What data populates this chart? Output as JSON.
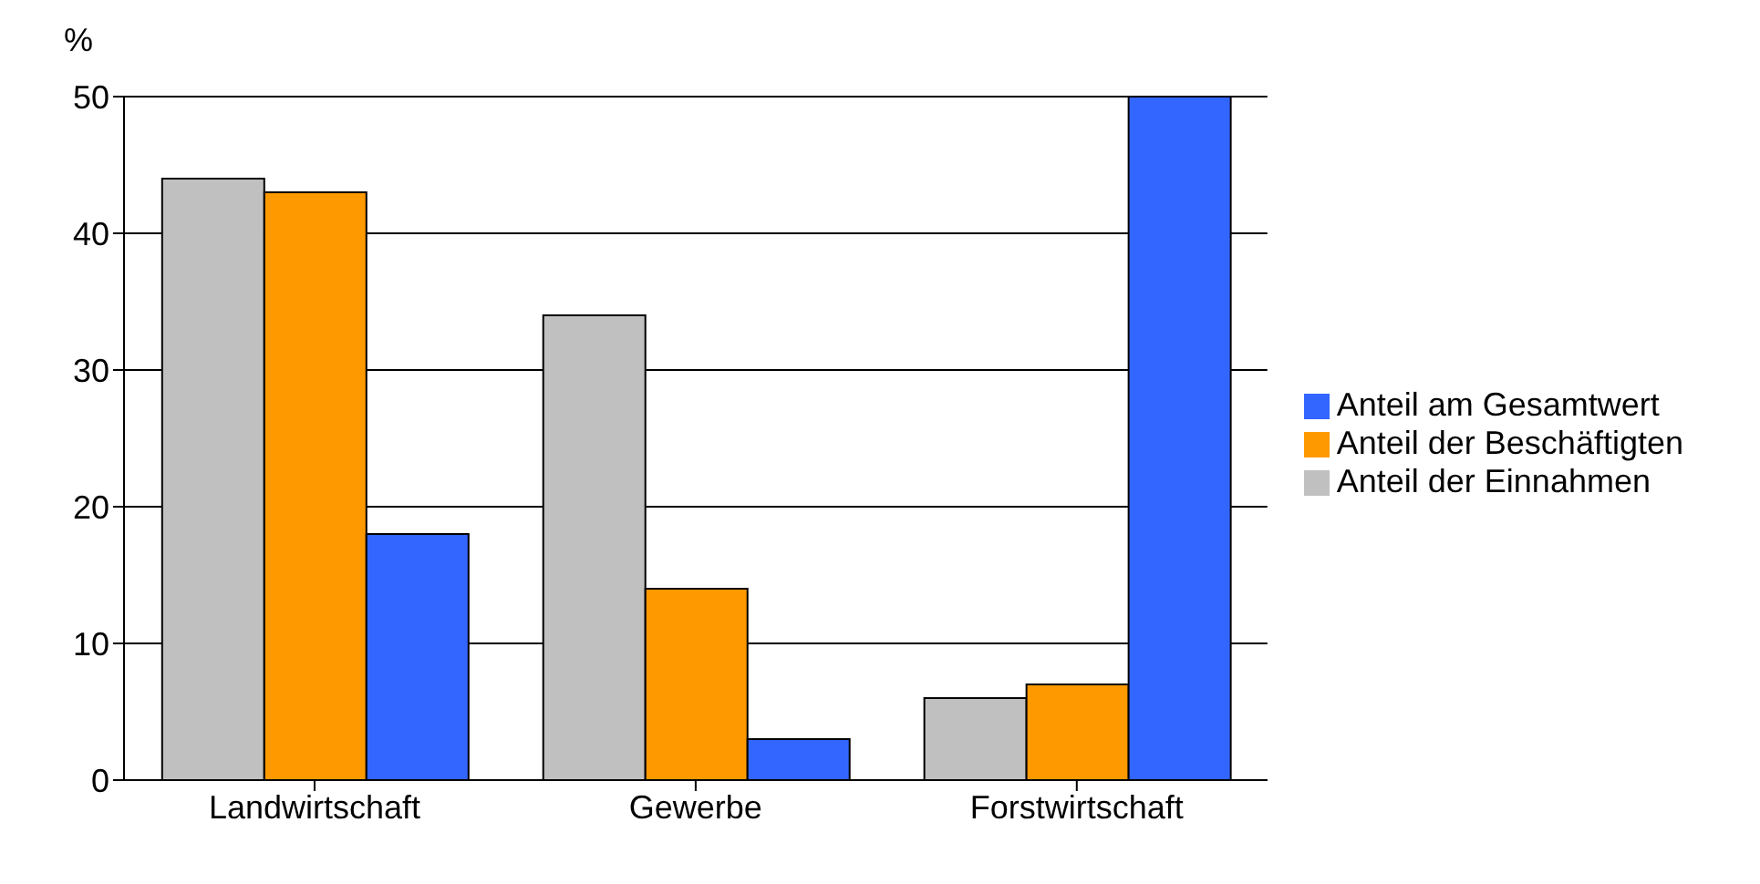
{
  "chart_data": {
    "type": "bar",
    "ylabel": "%",
    "categories": [
      "Landwirtschaft",
      "Gewerbe",
      "Forstwirtschaft"
    ],
    "series": [
      {
        "name": "Anteil der Einnahmen",
        "color": "#c0c0c0",
        "values": [
          44,
          34,
          6
        ]
      },
      {
        "name": "Anteil der Beschäftigten",
        "color": "#ff9900",
        "values": [
          43,
          14,
          7
        ]
      },
      {
        "name": "Anteil am Gesamtwert",
        "color": "#3366ff",
        "values": [
          18,
          3,
          50
        ]
      }
    ],
    "ylim": [
      0,
      50
    ],
    "yticks": [
      0,
      10,
      20,
      30,
      40,
      50
    ],
    "grid": "y",
    "legend": "right"
  }
}
